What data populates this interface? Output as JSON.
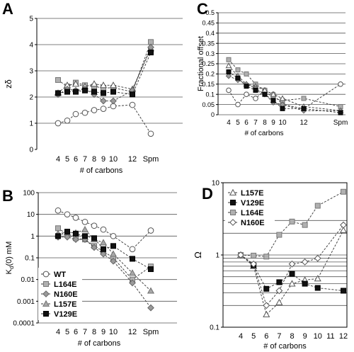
{
  "chart_data": [
    {
      "panel": "A",
      "type": "line",
      "ylabel": "zδ",
      "xlabel": "# of carbons",
      "ylim": [
        0,
        5
      ],
      "yticks": [
        "0",
        "1",
        "2",
        "3",
        "4",
        "5"
      ],
      "grid": "horizontal",
      "categories": [
        "4",
        "5",
        "6",
        "7",
        "8",
        "9",
        "10",
        "12",
        "Spm"
      ],
      "series": [
        {
          "marker": "circle-open",
          "values": [
            1.0,
            1.1,
            1.35,
            1.4,
            1.5,
            1.55,
            1.65,
            1.7,
            0.6
          ]
        },
        {
          "marker": "square-gray",
          "values": [
            2.65,
            2.4,
            2.55,
            2.45,
            2.4,
            2.35,
            2.35,
            2.2,
            4.1
          ]
        },
        {
          "marker": "triangle-open",
          "values": [
            2.15,
            2.45,
            2.5,
            2.4,
            2.5,
            2.45,
            2.45,
            2.3,
            3.85
          ]
        },
        {
          "marker": "diamond-gray",
          "values": [
            2.1,
            2.3,
            2.25,
            2.3,
            2.1,
            1.85,
            1.85,
            2.25,
            3.9
          ]
        },
        {
          "marker": "square-black",
          "values": [
            2.15,
            2.2,
            2.2,
            2.25,
            2.2,
            2.15,
            2.2,
            2.1,
            3.7
          ]
        }
      ]
    },
    {
      "panel": "B",
      "type": "line",
      "ylabel": "K",
      "ylabel_sub": "d",
      "ylabel_rest": "(0)   mM",
      "xlabel": "# of carbons",
      "yscale": "log",
      "ylim": [
        0.0001,
        100
      ],
      "yticks": [
        "100",
        "10",
        "1",
        "0.1",
        "0.01",
        "0.001",
        "0.0001"
      ],
      "grid": "horizontal",
      "legend_position": "bottom-left",
      "categories": [
        "4",
        "5",
        "6",
        "7",
        "8",
        "9",
        "10",
        "12",
        "Spm"
      ],
      "series": [
        {
          "name": "WT",
          "marker": "circle-open",
          "values": [
            15,
            10,
            7,
            4.5,
            3,
            2,
            1,
            0.25,
            1.8
          ]
        },
        {
          "name": "L164E",
          "marker": "square-gray",
          "values": [
            2.3,
            1.2,
            0.8,
            0.7,
            0.35,
            0.2,
            0.1,
            0.01,
            0.04
          ]
        },
        {
          "name": "N160E",
          "marker": "diamond-gray",
          "values": [
            0.9,
            0.9,
            0.7,
            0.7,
            0.3,
            0.15,
            0.07,
            0.007,
            0.0005
          ]
        },
        {
          "name": "L157E",
          "marker": "triangle-gray",
          "values": [
            1.3,
            1.5,
            1.4,
            2.0,
            0.7,
            0.5,
            0.15,
            0.02,
            0.003
          ]
        },
        {
          "name": "V129E",
          "marker": "square-black",
          "values": [
            1.0,
            1.6,
            1.3,
            1.0,
            0.8,
            0.25,
            0.35,
            0.09,
            0.03
          ]
        }
      ]
    },
    {
      "panel": "C",
      "type": "line",
      "ylabel": "Fractional offset",
      "xlabel": "# of carbons",
      "ylim": [
        0,
        0.5
      ],
      "yticks": [
        "0",
        "0.05",
        "0.1",
        "0.15",
        "0.2",
        "0.25",
        "0.3",
        "0.35",
        "0.4",
        "0.45",
        "0.5"
      ],
      "grid": "horizontal",
      "categories": [
        "4",
        "5",
        "6",
        "7",
        "8",
        "9",
        "10",
        "12",
        "Spm"
      ],
      "series": [
        {
          "marker": "circle-open",
          "values": [
            0.12,
            0.05,
            0.1,
            0.08,
            0.12,
            0.1,
            0.05,
            0.03,
            0.15
          ]
        },
        {
          "marker": "square-gray",
          "values": [
            0.27,
            0.22,
            0.2,
            0.15,
            0.12,
            0.08,
            0.07,
            0.08,
            0.04
          ]
        },
        {
          "marker": "triangle-open",
          "values": [
            0.24,
            0.19,
            0.15,
            0.14,
            0.12,
            0.1,
            0.08,
            0.04,
            0.02
          ]
        },
        {
          "marker": "diamond-gray",
          "values": [
            0.19,
            0.17,
            0.15,
            0.13,
            0.1,
            0.06,
            0.05,
            0.02,
            0.02
          ]
        },
        {
          "marker": "square-black",
          "values": [
            0.21,
            0.18,
            0.14,
            0.12,
            0.1,
            0.07,
            0.03,
            0.03,
            0.01
          ]
        }
      ]
    },
    {
      "panel": "D",
      "type": "line",
      "ylabel": "Ω",
      "xlabel": "# of carbons",
      "yscale": "log",
      "ylim": [
        0.1,
        10
      ],
      "yticks": [
        "0.1",
        "1",
        "10"
      ],
      "grid": "horizontal",
      "legend_position": "top-left",
      "x": [
        4,
        5,
        6,
        7,
        8,
        9,
        10,
        11,
        12
      ],
      "xticks": [
        "4",
        "5",
        "6",
        "7",
        "8",
        "9",
        "10",
        "11",
        "12"
      ],
      "series": [
        {
          "name": "L157E",
          "marker": "triangle-open",
          "x": [
            4,
            5,
            6,
            7,
            8,
            9,
            10,
            12
          ],
          "values": [
            1.0,
            0.7,
            0.15,
            0.22,
            0.4,
            0.45,
            0.47,
            2.2
          ]
        },
        {
          "name": "V129E",
          "marker": "square-black",
          "x": [
            4,
            5,
            6,
            7,
            8,
            9,
            10,
            12
          ],
          "values": [
            1.0,
            0.72,
            0.34,
            0.42,
            0.55,
            0.4,
            0.35,
            0.32
          ]
        },
        {
          "name": "L164E",
          "marker": "square-gray",
          "x": [
            4,
            5,
            6,
            7,
            8,
            9,
            10,
            12
          ],
          "values": [
            1.0,
            0.98,
            0.95,
            1.9,
            2.9,
            2.6,
            4.8,
            7.5
          ]
        },
        {
          "name": "N160E",
          "marker": "diamond-open",
          "x": [
            4,
            5,
            6,
            7,
            8,
            9,
            10,
            12
          ],
          "values": [
            1.0,
            0.75,
            0.2,
            0.32,
            0.75,
            0.8,
            0.9,
            2.6
          ]
        }
      ]
    }
  ]
}
